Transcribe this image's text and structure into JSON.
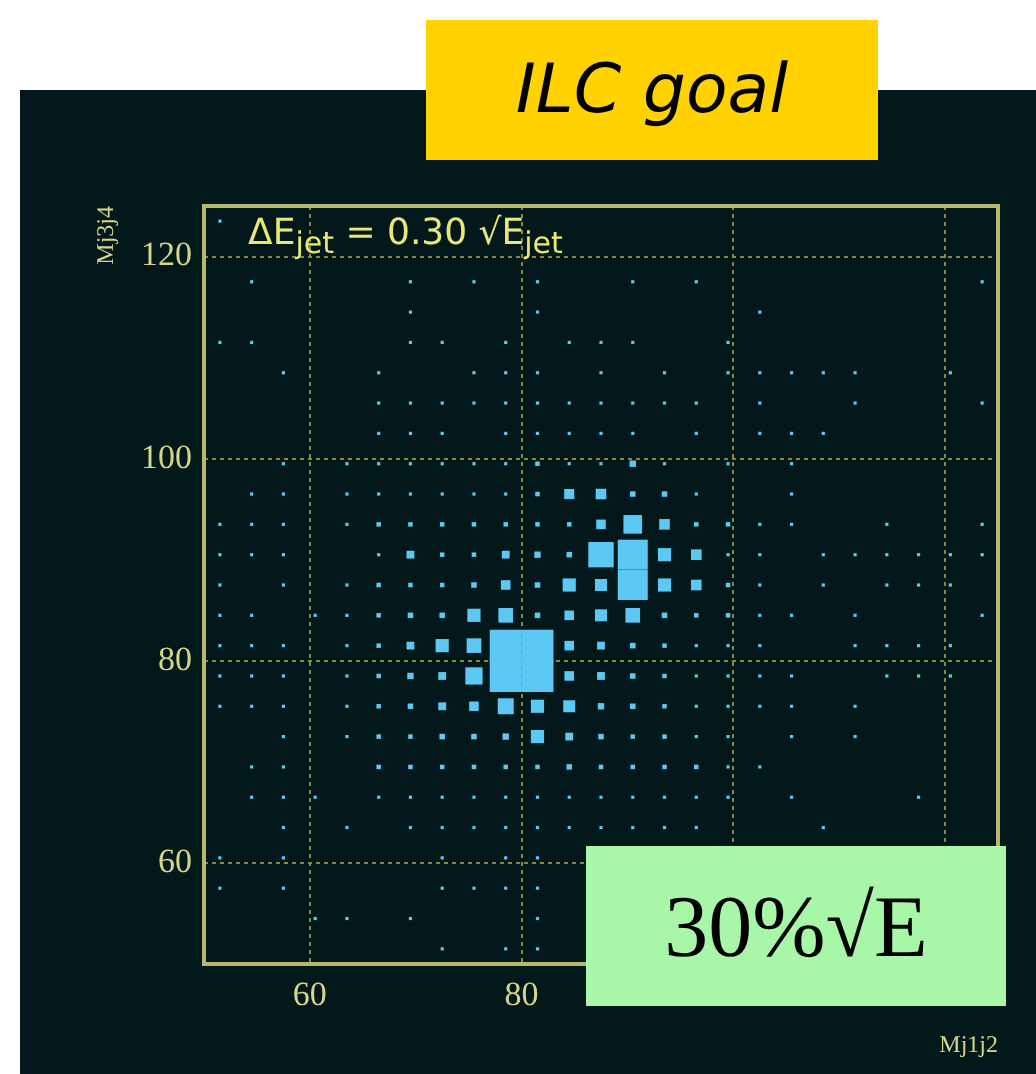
{
  "chart_data": {
    "type": "bubble",
    "title": "ILC goal",
    "xlabel": "Mj1j2",
    "ylabel": "Mj3j4",
    "annotations": [
      "ΔE$_{jet}$ = 0.30 √E$_{jet}$",
      "30%√E"
    ],
    "color": "#5cc8f4",
    "marker": "square",
    "grid": true,
    "xlim": [
      50,
      125
    ],
    "ylim": [
      50,
      125
    ],
    "xticks": [
      60,
      80,
      {
        "value": 100,
        "label": null
      },
      {
        "value": 120,
        "label": null
      }
    ],
    "yticks": [
      60,
      80,
      100,
      120
    ],
    "x": [
      51.5,
      54.5,
      69.5,
      75.5,
      81.5,
      90.5,
      96.5,
      123.5,
      69.5,
      81.5,
      102.5,
      51.5,
      54.5,
      69.5,
      72.5,
      78.5,
      84.5,
      87.5,
      90.5,
      99.5,
      57.5,
      66.5,
      75.5,
      78.5,
      81.5,
      87.5,
      93.5,
      99.5,
      102.5,
      105.5,
      108.5,
      111.5,
      120.5,
      66.5,
      69.5,
      72.5,
      75.5,
      78.5,
      81.5,
      84.5,
      87.5,
      90.5,
      93.5,
      96.5,
      102.5,
      111.5,
      123.5,
      66.5,
      69.5,
      72.5,
      78.5,
      81.5,
      84.5,
      87.5,
      90.5,
      96.5,
      102.5,
      105.5,
      108.5,
      57.5,
      63.5,
      66.5,
      69.5,
      72.5,
      75.5,
      78.5,
      81.5,
      84.5,
      87.5,
      90.5,
      93.5,
      99.5,
      105.5,
      54.5,
      57.5,
      63.5,
      66.5,
      69.5,
      72.5,
      75.5,
      78.5,
      81.5,
      84.5,
      87.5,
      90.5,
      93.5,
      96.5,
      105.5,
      51.5,
      54.5,
      57.5,
      63.5,
      66.5,
      69.5,
      72.5,
      75.5,
      78.5,
      81.5,
      84.5,
      87.5,
      90.5,
      93.5,
      96.5,
      99.5,
      102.5,
      105.5,
      114.5,
      123.5,
      51.5,
      54.5,
      57.5,
      66.5,
      69.5,
      72.5,
      75.5,
      78.5,
      81.5,
      84.5,
      87.5,
      90.5,
      93.5,
      96.5,
      99.5,
      102.5,
      108.5,
      111.5,
      114.5,
      117.5,
      120.5,
      123.5,
      51.5,
      57.5,
      63.5,
      66.5,
      69.5,
      72.5,
      75.5,
      78.5,
      81.5,
      84.5,
      87.5,
      90.5,
      93.5,
      96.5,
      99.5,
      102.5,
      108.5,
      114.5,
      117.5,
      120.5,
      51.5,
      54.5,
      60.5,
      63.5,
      66.5,
      69.5,
      72.5,
      75.5,
      78.5,
      81.5,
      84.5,
      87.5,
      90.5,
      93.5,
      96.5,
      99.5,
      102.5,
      105.5,
      111.5,
      123.5,
      51.5,
      54.5,
      57.5,
      63.5,
      66.5,
      69.5,
      72.5,
      75.5,
      78.5,
      81.5,
      84.5,
      87.5,
      90.5,
      93.5,
      96.5,
      99.5,
      102.5,
      111.5,
      114.5,
      117.5,
      120.5,
      51.5,
      54.5,
      57.5,
      63.5,
      66.5,
      69.5,
      72.5,
      75.5,
      78.5,
      81.5,
      84.5,
      87.5,
      90.5,
      93.5,
      96.5,
      99.5,
      102.5,
      105.5,
      114.5,
      117.5,
      120.5,
      51.5,
      54.5,
      57.5,
      63.5,
      66.5,
      69.5,
      72.5,
      75.5,
      78.5,
      81.5,
      84.5,
      87.5,
      90.5,
      93.5,
      96.5,
      99.5,
      102.5,
      105.5,
      111.5,
      57.5,
      63.5,
      66.5,
      69.5,
      72.5,
      75.5,
      78.5,
      81.5,
      84.5,
      87.5,
      90.5,
      93.5,
      96.5,
      99.5,
      105.5,
      111.5,
      54.5,
      57.5,
      66.5,
      69.5,
      72.5,
      75.5,
      78.5,
      81.5,
      84.5,
      87.5,
      90.5,
      93.5,
      96.5,
      99.5,
      102.5,
      54.5,
      57.5,
      60.5,
      66.5,
      69.5,
      72.5,
      75.5,
      78.5,
      81.5,
      84.5,
      87.5,
      90.5,
      93.5,
      96.5,
      99.5,
      105.5,
      117.5,
      57.5,
      63.5,
      69.5,
      72.5,
      75.5,
      78.5,
      81.5,
      84.5,
      87.5,
      90.5,
      93.5,
      96.5,
      108.5,
      51.5,
      57.5,
      72.5,
      78.5,
      81.5,
      51.5,
      57.5,
      72.5,
      75.5,
      78.5,
      81.5,
      60.5,
      63.5,
      69.5,
      81.5,
      72.5,
      78.5,
      81.5
    ],
    "values": [
      123.5,
      117.5,
      117.5,
      117.5,
      117.5,
      117.5,
      117.5,
      117.5,
      114.5,
      114.5,
      114.5,
      111.5,
      111.5,
      111.5,
      111.5,
      111.5,
      111.5,
      111.5,
      111.5,
      111.5,
      108.5,
      108.5,
      108.5,
      108.5,
      108.5,
      108.5,
      108.5,
      108.5,
      108.5,
      108.5,
      108.5,
      108.5,
      108.5,
      105.5,
      105.5,
      105.5,
      105.5,
      105.5,
      105.5,
      105.5,
      105.5,
      105.5,
      105.5,
      105.5,
      105.5,
      105.5,
      105.5,
      102.5,
      102.5,
      102.5,
      102.5,
      102.5,
      102.5,
      102.5,
      102.5,
      102.5,
      102.5,
      102.5,
      102.5,
      99.5,
      99.5,
      99.5,
      99.5,
      99.5,
      99.5,
      99.5,
      99.5,
      99.5,
      99.5,
      99.5,
      99.5,
      99.5,
      99.5,
      96.5,
      96.5,
      96.5,
      96.5,
      96.5,
      96.5,
      96.5,
      96.5,
      96.5,
      96.5,
      96.5,
      96.5,
      96.5,
      96.5,
      96.5,
      93.5,
      93.5,
      93.5,
      93.5,
      93.5,
      93.5,
      93.5,
      93.5,
      93.5,
      93.5,
      93.5,
      93.5,
      93.5,
      93.5,
      93.5,
      93.5,
      93.5,
      93.5,
      93.5,
      93.5,
      90.5,
      90.5,
      90.5,
      90.5,
      90.5,
      90.5,
      90.5,
      90.5,
      90.5,
      90.5,
      90.5,
      90.5,
      90.5,
      90.5,
      90.5,
      90.5,
      90.5,
      90.5,
      90.5,
      90.5,
      90.5,
      90.5,
      87.5,
      87.5,
      87.5,
      87.5,
      87.5,
      87.5,
      87.5,
      87.5,
      87.5,
      87.5,
      87.5,
      87.5,
      87.5,
      87.5,
      87.5,
      87.5,
      87.5,
      87.5,
      87.5,
      87.5,
      84.5,
      84.5,
      84.5,
      84.5,
      84.5,
      84.5,
      84.5,
      84.5,
      84.5,
      84.5,
      84.5,
      84.5,
      84.5,
      84.5,
      84.5,
      84.5,
      84.5,
      84.5,
      84.5,
      84.5,
      81.5,
      81.5,
      81.5,
      81.5,
      81.5,
      81.5,
      81.5,
      81.5,
      81.5,
      81.5,
      81.5,
      81.5,
      81.5,
      81.5,
      81.5,
      81.5,
      81.5,
      81.5,
      81.5,
      81.5,
      81.5,
      78.5,
      78.5,
      78.5,
      78.5,
      78.5,
      78.5,
      78.5,
      78.5,
      78.5,
      78.5,
      78.5,
      78.5,
      78.5,
      78.5,
      78.5,
      78.5,
      78.5,
      78.5,
      78.5,
      78.5,
      78.5,
      75.5,
      75.5,
      75.5,
      75.5,
      75.5,
      75.5,
      75.5,
      75.5,
      75.5,
      75.5,
      75.5,
      75.5,
      75.5,
      75.5,
      75.5,
      75.5,
      75.5,
      75.5,
      75.5,
      72.5,
      72.5,
      72.5,
      72.5,
      72.5,
      72.5,
      72.5,
      72.5,
      72.5,
      72.5,
      72.5,
      72.5,
      72.5,
      72.5,
      72.5,
      72.5,
      69.5,
      69.5,
      69.5,
      69.5,
      69.5,
      69.5,
      69.5,
      69.5,
      69.5,
      69.5,
      69.5,
      69.5,
      69.5,
      69.5,
      69.5,
      66.5,
      66.5,
      66.5,
      66.5,
      66.5,
      66.5,
      66.5,
      66.5,
      66.5,
      66.5,
      66.5,
      66.5,
      66.5,
      66.5,
      66.5,
      66.5,
      66.5,
      63.5,
      63.5,
      63.5,
      63.5,
      63.5,
      63.5,
      63.5,
      63.5,
      63.5,
      63.5,
      63.5,
      63.5,
      63.5,
      60.5,
      60.5,
      60.5,
      60.5,
      60.5,
      57.5,
      57.5,
      57.5,
      57.5,
      57.5,
      57.5,
      54.5,
      54.5,
      54.5,
      54.5,
      51.5,
      51.5,
      51.5
    ],
    "sizes": [
      0.01,
      0.01,
      0.01,
      0.01,
      0.01,
      0.01,
      0.01,
      0.01,
      0.01,
      0.01,
      0.01,
      0.01,
      0.01,
      0.01,
      0.01,
      0.01,
      0.01,
      0.01,
      0.01,
      0.01,
      0.01,
      0.01,
      0.01,
      0.01,
      0.01,
      0.01,
      0.01,
      0.01,
      0.01,
      0.01,
      0.01,
      0.01,
      0.01,
      0.01,
      0.01,
      0.01,
      0.01,
      0.01,
      0.01,
      0.01,
      0.01,
      0.01,
      0.01,
      0.01,
      0.01,
      0.01,
      0.01,
      0.01,
      0.01,
      0.01,
      0.01,
      0.01,
      0.01,
      0.01,
      0.01,
      0.01,
      0.01,
      0.01,
      0.01,
      0.01,
      0.01,
      0.01,
      0.01,
      0.01,
      0.01,
      0.01,
      0.02,
      0.01,
      0.01,
      0.04,
      0.01,
      0.01,
      0.01,
      0.01,
      0.01,
      0.01,
      0.01,
      0.01,
      0.01,
      0.01,
      0.01,
      0.02,
      0.1,
      0.11,
      0.03,
      0.03,
      0.01,
      0.01,
      0.01,
      0.01,
      0.01,
      0.01,
      0.02,
      0.02,
      0.02,
      0.02,
      0.02,
      0.02,
      0.02,
      0.09,
      0.34,
      0.11,
      0.02,
      0.02,
      0.01,
      0.01,
      0.01,
      0.01,
      0.01,
      0.01,
      0.01,
      0.01,
      0.06,
      0.02,
      0.02,
      0.06,
      0.04,
      0.03,
      0.63,
      0.88,
      0.17,
      0.11,
      0.01,
      0.01,
      0.01,
      0.01,
      0.01,
      0.01,
      0.01,
      0.01,
      0.01,
      0.01,
      0.01,
      0.02,
      0.02,
      0.02,
      0.03,
      0.09,
      0.03,
      0.17,
      0.14,
      0.88,
      0.17,
      0.11,
      0.02,
      0.01,
      0.01,
      0.01,
      0.01,
      0.01,
      0.01,
      0.01,
      0.01,
      0.01,
      0.02,
      0.03,
      0.03,
      0.17,
      0.21,
      0.03,
      0.09,
      0.14,
      0.21,
      0.03,
      0.02,
      0.02,
      0.01,
      0.01,
      0.01,
      0.01,
      0.01,
      0.01,
      0.01,
      0.01,
      0.02,
      0.06,
      0.17,
      0.21,
      1,
      1,
      0.09,
      0.06,
      0.03,
      0.02,
      0.01,
      0.01,
      0.01,
      0.01,
      0.01,
      0.01,
      0.01,
      0.01,
      0.01,
      0.01,
      0.01,
      0.02,
      0.04,
      0.06,
      0.29,
      1,
      1,
      0.09,
      0.06,
      0.03,
      0.02,
      0.01,
      0.01,
      0.01,
      0.01,
      0.01,
      0.01,
      0.01,
      0.01,
      0.01,
      0.01,
      0.01,
      0.02,
      0.03,
      0.06,
      0.09,
      0.25,
      0.17,
      0.14,
      0.04,
      0.03,
      0.02,
      0.01,
      0.01,
      0.01,
      0.01,
      0.01,
      0.01,
      0.01,
      0.02,
      0.02,
      0.03,
      0.03,
      0.04,
      0.17,
      0.06,
      0.03,
      0.02,
      0.02,
      0.01,
      0.01,
      0.01,
      0.01,
      0.01,
      0.01,
      0.02,
      0.02,
      0.02,
      0.02,
      0.02,
      0.02,
      0.03,
      0.02,
      0.02,
      0.02,
      0.02,
      0.01,
      0.01,
      0.01,
      0.01,
      0.01,
      0.01,
      0.01,
      0.01,
      0.01,
      0.01,
      0.01,
      0.01,
      0.01,
      0.01,
      0.01,
      0.01,
      0.01,
      0.01,
      0.01,
      0.01,
      0.01,
      0.01,
      0.01,
      0.01,
      0.01,
      0.01,
      0.01,
      0.01,
      0.01,
      0.01,
      0.01,
      0.01,
      0.01,
      0.01,
      0.01,
      0.01,
      0.01,
      0.01,
      0.01,
      0.01,
      0.01,
      0.01,
      0.01,
      0.01,
      0.01,
      0.01,
      0.01,
      0.01,
      0.01,
      0.01
    ]
  }
}
